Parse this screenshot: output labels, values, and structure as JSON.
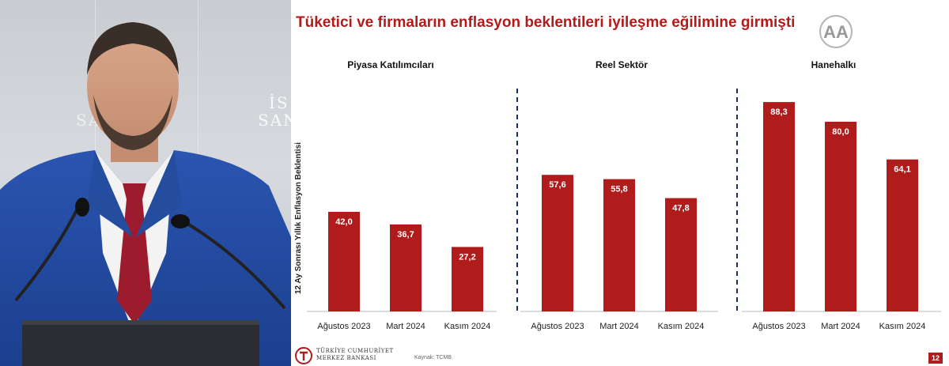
{
  "slide": {
    "title": "Tüketici ve firmaların enflasyon beklentileri iyileşme eğilimine girmişti",
    "y_axis_label": "12 Ay Sonrası Yıllık Enflasyon Beklentisi",
    "source": "Kaynak: TCMB.",
    "page_number": "12",
    "bank_name_line1": "TÜRKİYE CUMHURİYET",
    "bank_name_line2": "MERKEZ BANKASI",
    "watermark": "AA"
  },
  "video": {
    "wall_text_line1": "İS",
    "wall_text_line2": "SAN",
    "wall_text_left": "SA    I"
  },
  "colors": {
    "bar": "#b01c1c",
    "title": "#b01c1c",
    "divider": "#1f2f5c"
  },
  "chart_data": [
    {
      "type": "bar",
      "title": "Piyasa Katılımcıları",
      "categories": [
        "Ağustos 2023",
        "Mart 2024",
        "Kasım 2024"
      ],
      "values": [
        42.0,
        36.7,
        27.2
      ],
      "value_labels": [
        "42,0",
        "36,7",
        "27,2"
      ],
      "ylabel": "12 Ay Sonrası Yıllık Enflasyon Beklentisi",
      "ylim": [
        0,
        100
      ],
      "grid": false
    },
    {
      "type": "bar",
      "title": "Reel Sektör",
      "categories": [
        "Ağustos 2023",
        "Mart 2024",
        "Kasım 2024"
      ],
      "values": [
        57.6,
        55.8,
        47.8
      ],
      "value_labels": [
        "57,6",
        "55,8",
        "47,8"
      ],
      "ylim": [
        0,
        100
      ],
      "grid": false
    },
    {
      "type": "bar",
      "title": "Hanehalkı",
      "categories": [
        "Ağustos 2023",
        "Mart 2024",
        "Kasım 2024"
      ],
      "values": [
        88.3,
        80.0,
        64.1
      ],
      "value_labels": [
        "88,3",
        "80,0",
        "64,1"
      ],
      "ylim": [
        0,
        100
      ],
      "grid": false
    }
  ]
}
